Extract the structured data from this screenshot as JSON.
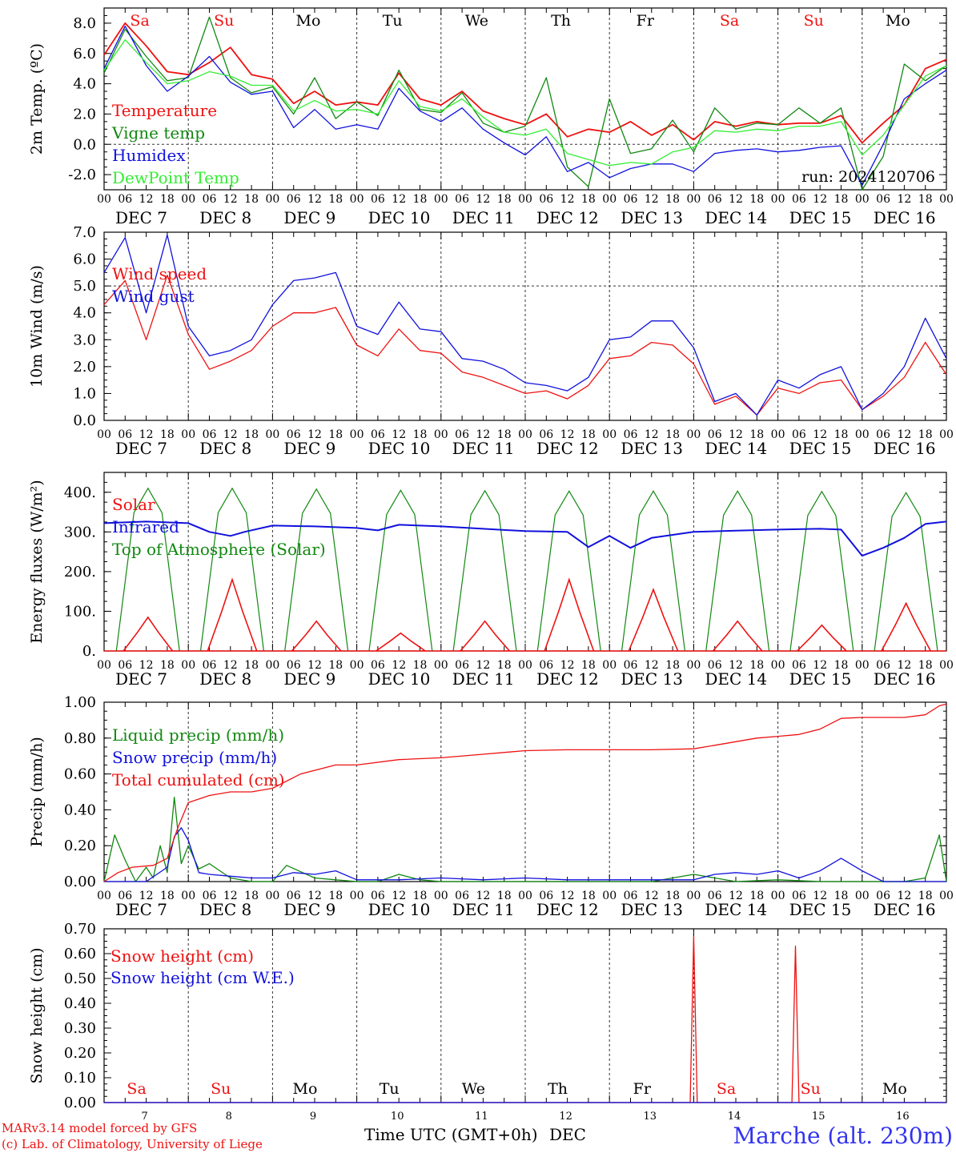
{
  "colors": {
    "red": "#ee1111",
    "green": "#118811",
    "blue": "#1111dd",
    "lightgreen": "#33ee33",
    "grid": "#333333"
  },
  "x_axis": {
    "hour_ticks": [
      "00",
      "06",
      "12",
      "18"
    ],
    "date_labels": [
      "DEC  7",
      "DEC  8",
      "DEC  9",
      "DEC 10",
      "DEC 11",
      "DEC 12",
      "DEC 13",
      "DEC 14",
      "DEC 15",
      "DEC 16"
    ],
    "days": [
      "Sa",
      "Su",
      "Mo",
      "Tu",
      "We",
      "Th",
      "Fr",
      "Sa",
      "Su",
      "Mo"
    ],
    "day_colors": [
      "red",
      "red",
      "black",
      "black",
      "black",
      "black",
      "black",
      "red",
      "red",
      "black"
    ],
    "day_numbers": [
      "7",
      "8",
      "9",
      "10",
      "11",
      "12",
      "13",
      "14",
      "15",
      "16"
    ],
    "xlabel": "Time UTC (GMT+0h)",
    "xlabel_suffix": "DEC"
  },
  "footer": {
    "model": "MARv3.14 model forced by GFS",
    "credit": "(c) Lab. of Climatology, University of Liege",
    "station": "Marche (alt. 230m)"
  },
  "chart_data": [
    {
      "type": "line",
      "ylabel": "2m Temp. (ºC)",
      "ylim": [
        -3,
        9
      ],
      "yticks": [
        "-2.0",
        "0.0",
        "2.0",
        "4.0",
        "6.0",
        "8.0"
      ],
      "ytick_values": [
        -2,
        0,
        2,
        4,
        6,
        8
      ],
      "ref_line": 0,
      "annotation": "run: 2024120706",
      "x_hours": [
        0,
        6,
        12,
        18,
        24,
        30,
        36,
        42,
        48,
        54,
        60,
        66,
        72,
        78,
        84,
        90,
        96,
        102,
        108,
        114,
        120,
        126,
        132,
        138,
        144,
        150,
        156,
        162,
        168,
        174,
        180,
        186,
        192,
        198,
        204,
        210,
        216,
        222,
        228,
        234,
        240
      ],
      "series": [
        {
          "name": "Temperature",
          "color": "red",
          "values": [
            5.9,
            8.0,
            6.5,
            4.8,
            4.6,
            5.4,
            6.4,
            4.6,
            4.3,
            2.7,
            3.5,
            2.6,
            2.8,
            2.6,
            4.7,
            3.0,
            2.6,
            3.5,
            2.2,
            1.7,
            1.3,
            2.0,
            0.5,
            1.0,
            0.8,
            1.5,
            0.6,
            1.3,
            0.3,
            1.5,
            1.2,
            1.5,
            1.3,
            1.4,
            1.4,
            1.9,
            0.1,
            1.4,
            2.6,
            5.0,
            5.6
          ]
        },
        {
          "name": "Vigne temp",
          "color": "green",
          "values": [
            4.7,
            7.6,
            5.8,
            4.2,
            4.4,
            8.4,
            4.4,
            3.4,
            3.8,
            2.0,
            4.4,
            1.7,
            2.8,
            1.9,
            4.9,
            2.3,
            2.1,
            3.4,
            1.4,
            0.8,
            1.2,
            4.4,
            -1.5,
            -2.8,
            3.0,
            -0.6,
            -0.3,
            1.6,
            -0.5,
            2.4,
            1.0,
            1.4,
            1.3,
            2.4,
            1.4,
            2.4,
            -3.0,
            -0.8,
            5.3,
            4.2,
            5.2
          ]
        },
        {
          "name": "Humidex",
          "color": "blue",
          "values": [
            5.0,
            7.8,
            5.2,
            3.5,
            4.5,
            5.8,
            4.1,
            3.3,
            3.5,
            1.1,
            2.3,
            1.0,
            1.3,
            1.0,
            3.7,
            2.2,
            1.5,
            2.4,
            1.0,
            0.1,
            -0.7,
            0.5,
            -1.8,
            -1.2,
            -2.2,
            -1.6,
            -1.3,
            -1.3,
            -1.8,
            -0.6,
            -0.4,
            -0.3,
            -0.5,
            -0.4,
            -0.2,
            -0.1,
            -2.7,
            0.0,
            3.0,
            4.0,
            4.9
          ]
        },
        {
          "name": "DewPoint Temp",
          "color": "lightgreen",
          "values": [
            4.9,
            6.9,
            5.4,
            4.0,
            4.2,
            4.8,
            4.5,
            3.9,
            3.9,
            2.2,
            2.9,
            2.2,
            2.3,
            2.0,
            4.2,
            2.5,
            2.2,
            3.0,
            1.8,
            0.8,
            0.6,
            1.0,
            -0.6,
            -1.0,
            -1.4,
            -1.2,
            -1.3,
            -0.5,
            -0.2,
            0.9,
            0.8,
            1.0,
            0.9,
            1.2,
            1.2,
            1.5,
            -0.7,
            0.6,
            2.6,
            4.5,
            5.2
          ]
        }
      ]
    },
    {
      "type": "line",
      "ylabel": "10m Wind (m/s)",
      "ylim": [
        0,
        7
      ],
      "yticks": [
        "0.0",
        "1.0",
        "2.0",
        "3.0",
        "4.0",
        "5.0",
        "6.0",
        "7.0"
      ],
      "ytick_values": [
        0,
        1,
        2,
        3,
        4,
        5,
        6,
        7
      ],
      "ref_line": 5,
      "x_hours": [
        0,
        6,
        12,
        18,
        24,
        30,
        36,
        42,
        48,
        54,
        60,
        66,
        72,
        78,
        84,
        90,
        96,
        102,
        108,
        114,
        120,
        126,
        132,
        138,
        144,
        150,
        156,
        162,
        168,
        174,
        180,
        186,
        192,
        198,
        204,
        210,
        216,
        222,
        228,
        234,
        240
      ],
      "series": [
        {
          "name": "Wind speed",
          "color": "red",
          "values": [
            4.3,
            5.2,
            3.0,
            5.4,
            3.2,
            1.9,
            2.2,
            2.6,
            3.5,
            4.0,
            4.0,
            4.2,
            2.8,
            2.4,
            3.4,
            2.6,
            2.5,
            1.8,
            1.6,
            1.3,
            1.0,
            1.1,
            0.8,
            1.3,
            2.3,
            2.4,
            2.9,
            2.8,
            2.1,
            0.6,
            0.9,
            0.2,
            1.2,
            1.0,
            1.4,
            1.5,
            0.4,
            0.9,
            1.6,
            2.9,
            1.7
          ]
        },
        {
          "name": "Wind gust",
          "color": "blue",
          "values": [
            5.5,
            6.8,
            4.0,
            6.9,
            3.5,
            2.4,
            2.6,
            3.0,
            4.3,
            5.2,
            5.3,
            5.5,
            3.5,
            3.2,
            4.4,
            3.4,
            3.3,
            2.3,
            2.2,
            1.9,
            1.4,
            1.3,
            1.1,
            1.6,
            3.0,
            3.1,
            3.7,
            3.7,
            2.7,
            0.7,
            1.0,
            0.2,
            1.5,
            1.2,
            1.7,
            2.0,
            0.4,
            1.0,
            2.0,
            3.8,
            2.3
          ]
        }
      ]
    },
    {
      "type": "line",
      "ylabel": "Energy fluxes (W/m²)",
      "ylim": [
        0,
        450
      ],
      "yticks": [
        "0.",
        "100.",
        "200.",
        "300.",
        "400."
      ],
      "ytick_values": [
        0,
        100,
        200,
        300,
        400
      ],
      "peaks": {
        "centers": [
          12.5,
          36.5,
          60.5,
          84.5,
          108.5,
          132.5,
          156.5,
          180.5,
          204.5,
          228.5
        ],
        "toa": [
          410,
          410,
          408,
          405,
          404,
          403,
          403,
          403,
          402,
          399
        ],
        "solar": [
          85,
          180,
          75,
          45,
          75,
          180,
          155,
          75,
          65,
          120
        ]
      },
      "series": [
        {
          "name": "Solar",
          "color": "red"
        },
        {
          "name": "Infrared",
          "color": "blue",
          "x_hours": [
            0,
            12,
            18,
            24,
            30,
            36,
            40,
            48,
            60,
            72,
            78,
            84,
            96,
            108,
            120,
            132,
            138,
            144,
            150,
            156,
            168,
            180,
            192,
            204,
            210,
            216,
            222,
            228,
            234,
            240
          ],
          "values": [
            322,
            326,
            324,
            322,
            300,
            290,
            300,
            316,
            314,
            310,
            304,
            318,
            314,
            308,
            302,
            300,
            262,
            290,
            260,
            285,
            300,
            303,
            306,
            308,
            306,
            240,
            260,
            285,
            320,
            326
          ]
        },
        {
          "name": "Top of Atmosphere (Solar)",
          "color": "green"
        }
      ]
    },
    {
      "type": "line",
      "ylabel": "Precip (mm/h)",
      "ylim": [
        0,
        1.0
      ],
      "yticks": [
        "0.00",
        "0.20",
        "0.40",
        "0.60",
        "0.80",
        "1.00"
      ],
      "ytick_values": [
        0,
        0.2,
        0.4,
        0.6,
        0.8,
        1.0
      ],
      "series": [
        {
          "name": "Liquid precip (mm/h)",
          "color": "green",
          "x_hours": [
            0,
            3,
            6,
            9,
            12,
            14,
            16,
            18,
            20,
            22,
            24,
            27,
            30,
            36,
            42,
            48,
            52,
            60,
            66,
            72,
            78,
            84,
            90,
            96,
            108,
            120,
            132,
            144,
            156,
            168,
            180,
            192,
            204,
            216,
            228,
            234,
            238,
            240
          ],
          "values": [
            0,
            0.26,
            0.12,
            0.0,
            0.08,
            0.02,
            0.2,
            0.05,
            0.47,
            0.1,
            0.2,
            0.07,
            0.1,
            0.02,
            0.0,
            0.0,
            0.09,
            0.02,
            0.01,
            0.0,
            0.0,
            0.04,
            0.01,
            0.0,
            0.0,
            0.0,
            0.0,
            0.0,
            0.0,
            0.04,
            0.0,
            0.01,
            0.0,
            0.0,
            0.0,
            0.02,
            0.26,
            0.0
          ]
        },
        {
          "name": "Snow precip (mm/h)",
          "color": "blue",
          "x_hours": [
            0,
            12,
            18,
            20,
            22,
            24,
            27,
            30,
            36,
            42,
            48,
            54,
            60,
            66,
            72,
            78,
            84,
            96,
            108,
            120,
            132,
            144,
            156,
            168,
            174,
            180,
            186,
            192,
            198,
            204,
            210,
            216,
            222,
            228,
            234,
            240
          ],
          "values": [
            0,
            0.0,
            0.08,
            0.25,
            0.3,
            0.23,
            0.05,
            0.04,
            0.03,
            0.02,
            0.02,
            0.05,
            0.04,
            0.06,
            0.01,
            0.01,
            0.01,
            0.02,
            0.01,
            0.02,
            0.01,
            0.01,
            0.01,
            0.01,
            0.04,
            0.05,
            0.04,
            0.06,
            0.02,
            0.06,
            0.13,
            0.06,
            0.0,
            0.0,
            0.0,
            0.0
          ]
        },
        {
          "name": "Total cumulated (cm)",
          "color": "red",
          "x_hours": [
            0,
            4,
            8,
            14,
            18,
            21,
            24,
            30,
            36,
            42,
            48,
            56,
            66,
            72,
            84,
            96,
            108,
            120,
            132,
            144,
            156,
            168,
            174,
            180,
            186,
            192,
            198,
            204,
            210,
            216,
            222,
            228,
            234,
            238,
            240
          ],
          "values": [
            0,
            0.05,
            0.08,
            0.09,
            0.13,
            0.3,
            0.44,
            0.48,
            0.5,
            0.5,
            0.52,
            0.6,
            0.65,
            0.65,
            0.68,
            0.69,
            0.71,
            0.73,
            0.735,
            0.735,
            0.735,
            0.74,
            0.76,
            0.78,
            0.8,
            0.81,
            0.82,
            0.85,
            0.91,
            0.915,
            0.915,
            0.915,
            0.93,
            0.98,
            0.99
          ]
        }
      ]
    },
    {
      "type": "line",
      "ylabel": "Snow height (cm)",
      "ylim": [
        0,
        0.7
      ],
      "yticks": [
        "0.00",
        "0.10",
        "0.20",
        "0.30",
        "0.40",
        "0.50",
        "0.60",
        "0.70"
      ],
      "ytick_values": [
        0,
        0.1,
        0.2,
        0.3,
        0.4,
        0.5,
        0.6,
        0.7
      ],
      "series": [
        {
          "name": "Snow height (cm)",
          "color": "red",
          "x_hours": [
            0,
            167,
            168,
            169,
            196,
            197,
            198,
            240
          ],
          "values": [
            0,
            0,
            0.67,
            0,
            0,
            0.63,
            0,
            0
          ]
        },
        {
          "name": "Snow height (cm W.E.)",
          "color": "blue",
          "x_hours": [
            0,
            240
          ],
          "values": [
            0,
            0
          ]
        }
      ]
    }
  ]
}
